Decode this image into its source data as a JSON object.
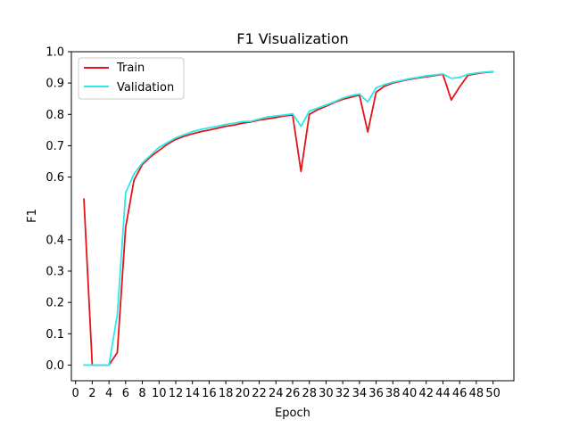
{
  "chart_data": {
    "type": "line",
    "title": "F1 Visualization",
    "xlabel": "Epoch",
    "ylabel": "F1",
    "xlim": [
      -0.5,
      52.5
    ],
    "ylim": [
      -0.05,
      1.0
    ],
    "grid": false,
    "legend_position": "upper-left",
    "x_ticks": [
      0,
      2,
      4,
      6,
      8,
      10,
      12,
      14,
      16,
      18,
      20,
      22,
      24,
      26,
      28,
      30,
      32,
      34,
      36,
      38,
      40,
      42,
      44,
      46,
      48,
      50
    ],
    "y_ticks": [
      0.0,
      0.1,
      0.2,
      0.3,
      0.4,
      0.6,
      0.7,
      0.8,
      0.9,
      1.0
    ],
    "y_tick_labels": [
      "0.0",
      "0.1",
      "0.2",
      "0.3",
      "0.4",
      "0.6",
      "0.7",
      "0.8",
      "0.9",
      "1.0"
    ],
    "x": [
      1,
      2,
      3,
      4,
      5,
      6,
      7,
      8,
      9,
      10,
      11,
      12,
      13,
      14,
      15,
      16,
      17,
      18,
      19,
      20,
      21,
      22,
      23,
      24,
      25,
      26,
      27,
      28,
      29,
      30,
      31,
      32,
      33,
      34,
      35,
      36,
      37,
      38,
      39,
      40,
      41,
      42,
      43,
      44,
      45,
      46,
      47,
      48,
      49,
      50
    ],
    "series": [
      {
        "name": "Train",
        "color": "#e0161b",
        "values": [
          0.53,
          0.0,
          0.0,
          0.0,
          0.04,
          0.44,
          0.59,
          0.64,
          0.665,
          0.685,
          0.705,
          0.72,
          0.73,
          0.738,
          0.745,
          0.75,
          0.756,
          0.762,
          0.766,
          0.772,
          0.776,
          0.782,
          0.786,
          0.79,
          0.795,
          0.798,
          0.618,
          0.8,
          0.815,
          0.826,
          0.838,
          0.848,
          0.855,
          0.862,
          0.744,
          0.871,
          0.89,
          0.9,
          0.906,
          0.912,
          0.916,
          0.92,
          0.924,
          0.928,
          0.846,
          0.888,
          0.925,
          0.93,
          0.934,
          0.936
        ]
      },
      {
        "name": "Validation",
        "color": "#2de8ea",
        "values": [
          0.0,
          0.0,
          0.0,
          0.0,
          0.16,
          0.55,
          0.61,
          0.645,
          0.67,
          0.695,
          0.71,
          0.725,
          0.735,
          0.745,
          0.752,
          0.757,
          0.762,
          0.768,
          0.772,
          0.777,
          0.778,
          0.785,
          0.792,
          0.795,
          0.798,
          0.802,
          0.762,
          0.81,
          0.82,
          0.83,
          0.84,
          0.852,
          0.86,
          0.865,
          0.84,
          0.885,
          0.895,
          0.903,
          0.908,
          0.914,
          0.918,
          0.923,
          0.926,
          0.929,
          0.915,
          0.918,
          0.928,
          0.932,
          0.935,
          0.937
        ]
      }
    ]
  }
}
